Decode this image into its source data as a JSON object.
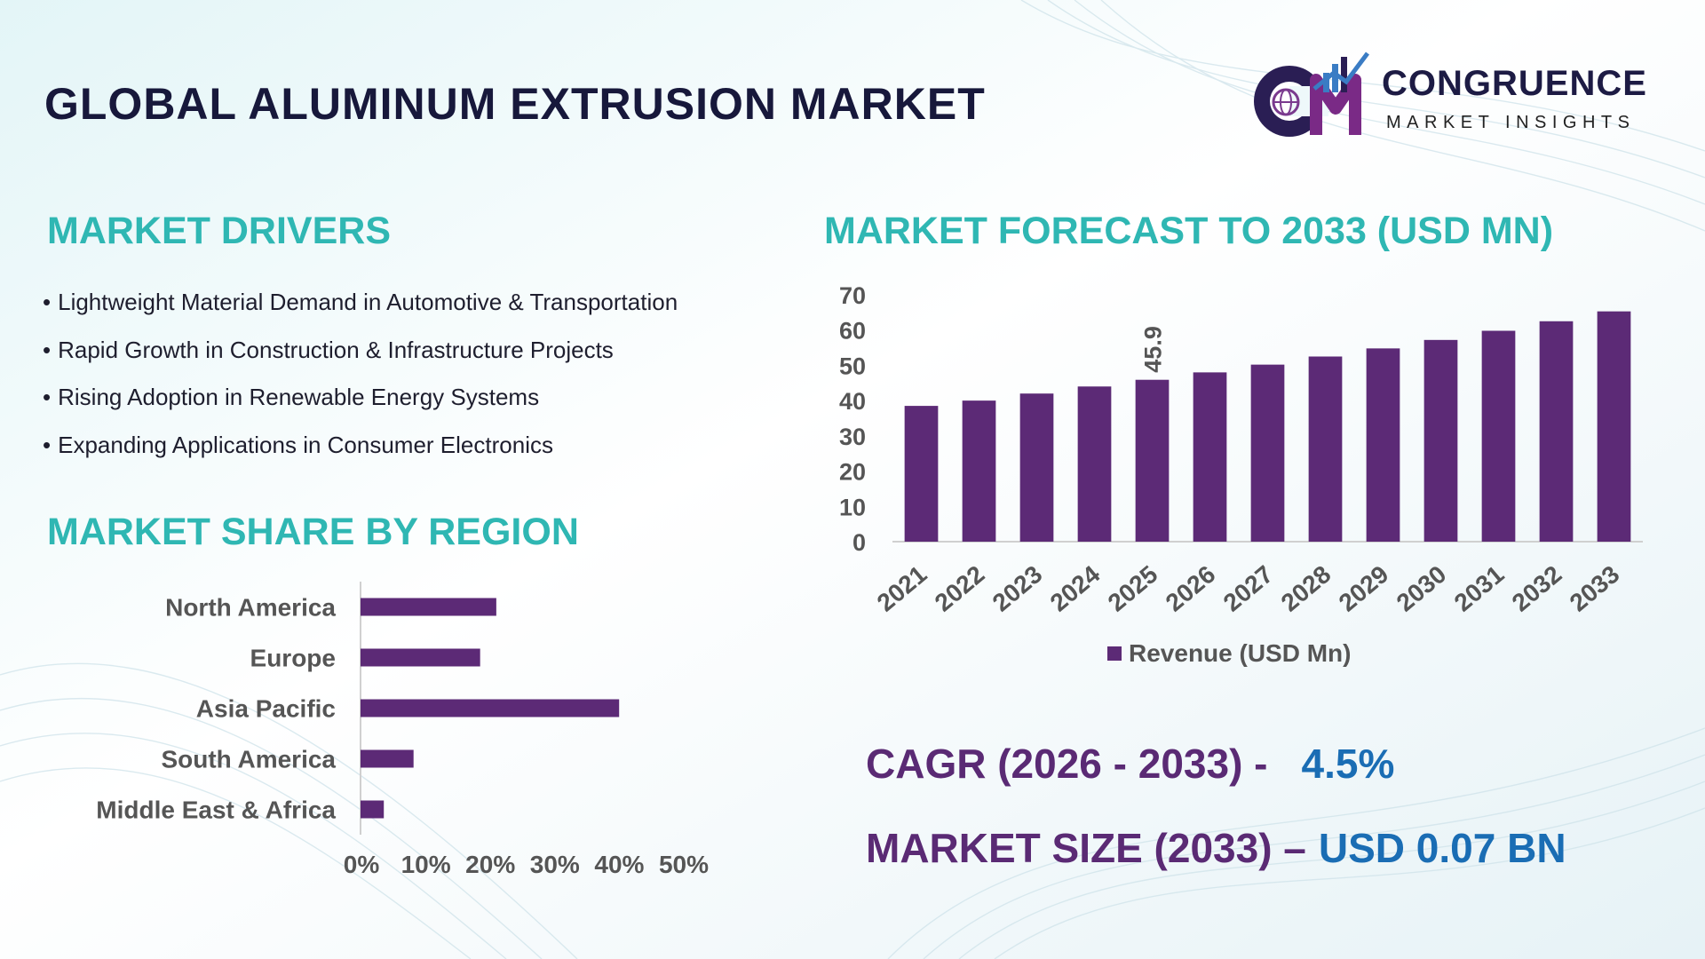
{
  "title": "GLOBAL ALUMINUM EXTRUSION MARKET",
  "logo": {
    "name": "CONGRUENCE",
    "tagline": "MARKET INSIGHTS"
  },
  "drivers": {
    "title": "MARKET DRIVERS",
    "items": [
      "Lightweight Material Demand in Automotive & Transportation",
      "Rapid Growth in Construction & Infrastructure Projects",
      "Rising Adoption in Renewable Energy Systems",
      "Expanding Applications in Consumer Electronics"
    ]
  },
  "share": {
    "title": "MARKET SHARE BY REGION"
  },
  "forecast": {
    "title": "MARKET FORECAST TO 2033 (USD MN)"
  },
  "kpis": {
    "cagr_label": "CAGR (2026 - 2033) -",
    "cagr_value": "4.5%",
    "size_label": "MARKET SIZE (2033) –",
    "size_value": "USD 0.07 BN"
  },
  "colors": {
    "bar": "#5c2a76",
    "heading": "#2fb7b3",
    "title": "#17183b",
    "kpi_label": "#5a2a74",
    "kpi_value": "#1a6db4"
  },
  "chart_data": [
    {
      "type": "bar",
      "orientation": "vertical",
      "categories": [
        "2021",
        "2022",
        "2023",
        "2024",
        "2025",
        "2026",
        "2027",
        "2028",
        "2029",
        "2030",
        "2031",
        "2032",
        "2033"
      ],
      "series": [
        {
          "name": "Revenue (USD Mn)",
          "values": [
            38.5,
            40.0,
            42.0,
            44.0,
            45.9,
            48.0,
            50.2,
            52.5,
            54.8,
            57.2,
            59.8,
            62.5,
            65.3
          ]
        }
      ],
      "data_labels": [
        {
          "category": "2025",
          "text": "45.9"
        }
      ],
      "ylim": [
        0,
        70
      ],
      "yticks": [
        0,
        10,
        20,
        30,
        40,
        50,
        60,
        70
      ],
      "legend": "bottom",
      "grid": false
    },
    {
      "type": "bar",
      "orientation": "horizontal",
      "categories": [
        "North America",
        "Europe",
        "Asia Pacific",
        "South America",
        "Middle East & Africa"
      ],
      "values": [
        0.21,
        0.185,
        0.4,
        0.082,
        0.036
      ],
      "xlim": [
        0,
        0.5
      ],
      "xticks": [
        "0%",
        "10%",
        "20%",
        "30%",
        "40%",
        "50%"
      ],
      "legend": "none",
      "grid": false
    }
  ]
}
